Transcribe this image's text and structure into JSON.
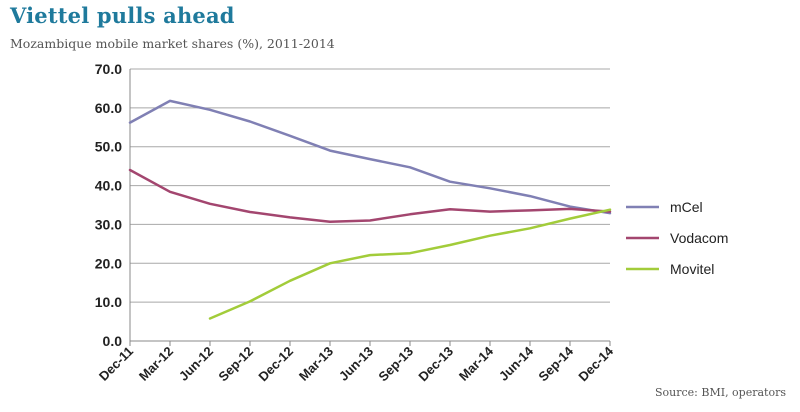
{
  "header": {
    "title": "Viettel pulls ahead",
    "subtitle": "Mozambique mobile market shares (%), 2011-2014"
  },
  "footer": {
    "source": "Source: BMI, operators"
  },
  "chart_data": {
    "type": "line",
    "title": "Viettel pulls ahead",
    "subtitle": "Mozambique mobile market shares (%), 2011-2014",
    "xlabel": "",
    "ylabel": "",
    "ylim": [
      0,
      70
    ],
    "yticks": [
      "0.0",
      "10.0",
      "20.0",
      "30.0",
      "40.0",
      "50.0",
      "60.0",
      "70.0"
    ],
    "categories": [
      "Dec-11",
      "Mar-12",
      "Jun-12",
      "Sep-12",
      "Dec-12",
      "Mar-13",
      "Jun-13",
      "Sep-13",
      "Dec-13",
      "Mar-14",
      "Jun-14",
      "Sep-14",
      "Dec-14"
    ],
    "grid": true,
    "legend": "right",
    "series": [
      {
        "name": "mCel",
        "color": "#8080b4",
        "values": [
          56.2,
          61.8,
          59.5,
          56.5,
          52.8,
          49.0,
          46.8,
          44.7,
          41.0,
          39.3,
          37.3,
          34.6,
          32.9
        ]
      },
      {
        "name": "Vodacom",
        "color": "#a3466f",
        "values": [
          44.0,
          38.4,
          35.3,
          33.2,
          31.8,
          30.7,
          31.0,
          32.6,
          33.9,
          33.3,
          33.6,
          34.0,
          33.3
        ]
      },
      {
        "name": "Movitel",
        "color": "#a2cc3a",
        "values": [
          null,
          null,
          5.8,
          10.2,
          15.5,
          20.0,
          22.1,
          22.6,
          24.7,
          27.1,
          29.0,
          31.5,
          33.8
        ]
      }
    ]
  }
}
